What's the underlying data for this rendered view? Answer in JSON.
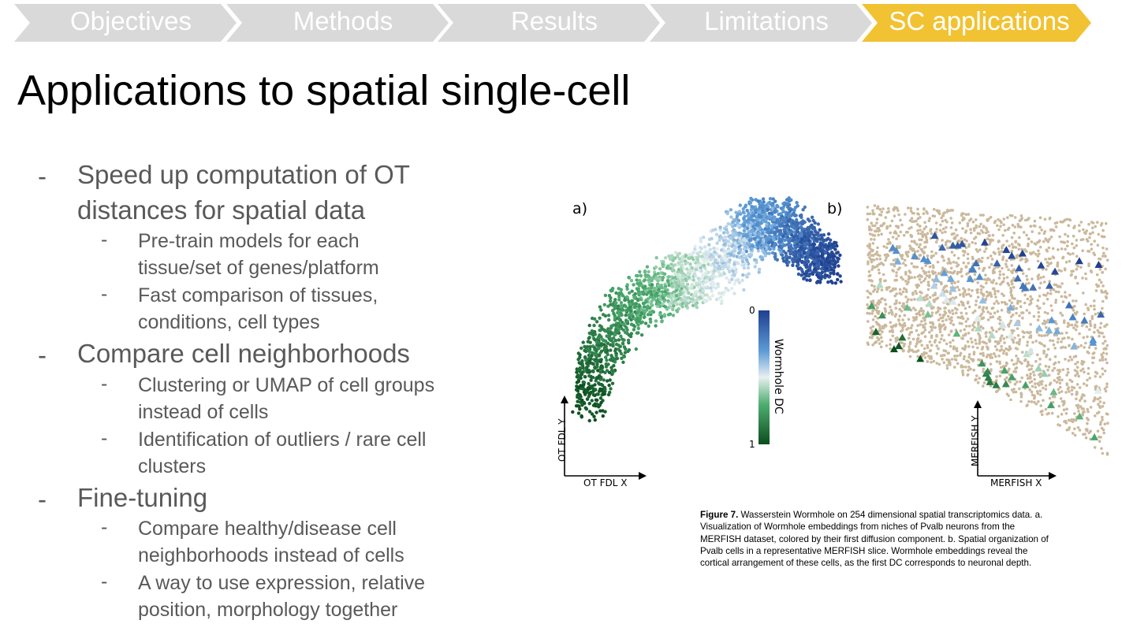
{
  "breadcrumb": {
    "items": [
      {
        "label": "Objectives",
        "active": false
      },
      {
        "label": "Methods",
        "active": false
      },
      {
        "label": "Results",
        "active": false
      },
      {
        "label": "Limitations",
        "active": false
      },
      {
        "label": "SC applications",
        "active": true
      }
    ],
    "inactive_color": "#d9d9d9",
    "active_color": "#f1c232"
  },
  "title": "Applications to spatial single-cell",
  "bullets": [
    {
      "lines": [
        "Speed up computation of OT",
        "distances for spatial data"
      ],
      "subs": [
        {
          "lines": [
            "Pre-train models for each",
            "tissue/set of genes/platform"
          ]
        },
        {
          "lines": [
            "Fast comparison of tissues,",
            "conditions, cell types"
          ]
        }
      ]
    },
    {
      "lines": [
        "Compare cell neighborhoods"
      ],
      "subs": [
        {
          "lines": [
            "Clustering or UMAP of cell groups",
            "instead of cells"
          ]
        },
        {
          "lines": [
            "Identification of outliers / rare cell",
            "clusters"
          ]
        }
      ]
    },
    {
      "lines": [
        "Fine-tuning"
      ],
      "subs": [
        {
          "lines": [
            "Compare healthy/disease cell",
            "neighborhoods instead of cells"
          ]
        },
        {
          "lines": [
            "A way to use expression, relative",
            "position, morphology together"
          ]
        }
      ]
    }
  ],
  "bullet_dash": "-",
  "figure": {
    "panel_a": {
      "label": "a)",
      "xlabel": "OT FDL X",
      "ylabel": "OT FDL Y",
      "colorbar": {
        "label": "Wormhole DC",
        "min_tick": "0",
        "max_tick": "1"
      }
    },
    "panel_b": {
      "label": "b)",
      "xlabel": "MERFISH X",
      "ylabel": "MERFISH Y"
    },
    "caption_bold": "Figure 7.",
    "caption_text": " Wasserstein Wormhole on 254 dimensional spatial transcriptomics data. a. Visualization of Wormhole embeddings from niches of Pvalb neurons from the MERFISH dataset, colored by their first diffusion component. b. Spatial organization of Pvalb cells in a representative MERFISH slice. Wormhole embeddings reveal the cortical arrangement of these cells, as the first DC corresponds to neuronal depth."
  },
  "colors": {
    "text_gray": "#595959",
    "dc_low": "#0b4d1e",
    "dc_mid": "#e8f0f0",
    "dc_high": "#1f3f8f",
    "background_cells": "#cbb99c"
  }
}
